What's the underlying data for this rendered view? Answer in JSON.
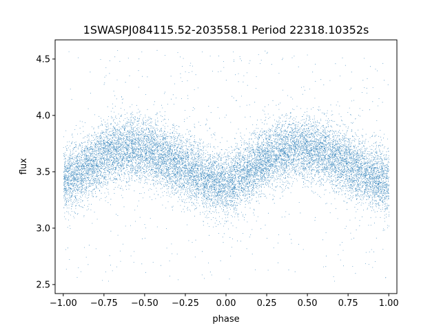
{
  "chart_data": {
    "type": "scatter",
    "title": "1SWASPJ084115.52-203558.1 Period 22318.10352s",
    "xlabel": "phase",
    "ylabel": "flux",
    "xlim": [
      -1.05,
      1.05
    ],
    "ylim": [
      2.42,
      4.67
    ],
    "xticks": [
      -1.0,
      -0.75,
      -0.5,
      -0.25,
      0.0,
      0.25,
      0.5,
      0.75,
      1.0
    ],
    "xtick_labels": [
      "−1.00",
      "−0.75",
      "−0.50",
      "−0.25",
      "0.00",
      "0.25",
      "0.50",
      "0.75",
      "1.00"
    ],
    "yticks": [
      2.5,
      3.0,
      3.5,
      4.0,
      4.5
    ],
    "ytick_labels": [
      "2.5",
      "3.0",
      "3.5",
      "4.0",
      "4.5"
    ],
    "grid": false,
    "marker_color": "#1f77b4",
    "series": [
      {
        "x_range": [
          -1.0,
          1.0
        ],
        "profile": {
          "phase": [
            -1.0,
            -0.9,
            -0.8,
            -0.7,
            -0.6,
            -0.5,
            -0.4,
            -0.3,
            -0.2,
            -0.1,
            0.0,
            0.1,
            0.2,
            0.3,
            0.4,
            0.5,
            0.6,
            0.7,
            0.8,
            0.9,
            1.0
          ],
          "flux_median": [
            3.42,
            3.5,
            3.6,
            3.68,
            3.72,
            3.71,
            3.65,
            3.57,
            3.5,
            3.43,
            3.38,
            3.48,
            3.58,
            3.66,
            3.71,
            3.72,
            3.68,
            3.6,
            3.52,
            3.45,
            3.42
          ]
        },
        "scatter_sigma": 0.14,
        "outlier_range": [
          2.52,
          4.58
        ],
        "n_points": 16000
      }
    ]
  }
}
